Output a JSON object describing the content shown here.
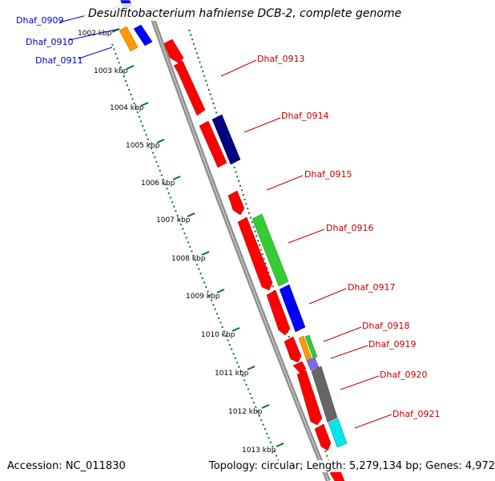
{
  "title": "Desulfitobacterium hafniense DCB-2, complete genome",
  "footer": {
    "accession": "Accession: NC_011830",
    "topology": "Topology: circular; Length: 5,279,134 bp; Genes: 4,972"
  },
  "colors": {
    "backbone": "#808080",
    "ticks": "#00761f",
    "label_blue": "#0000c0",
    "label_red": "#c00000"
  },
  "kbp_ticks": [
    "1002 kbp",
    "1003 kbp",
    "1004 kbp",
    "1005 kbp",
    "1006 kbp",
    "1007 kbp",
    "1008 kbp",
    "1009 kbp",
    "1010 kbp",
    "1011 kbp",
    "1012 kbp",
    "1013 kbp"
  ],
  "genes": [
    {
      "name": "Dhaf_0909",
      "strand": "+",
      "color": "#0000ff",
      "label_color": "#0000c0"
    },
    {
      "name": "Dhaf_0910",
      "strand": "+",
      "color": "#ff9900",
      "label_color": "#0000c0"
    },
    {
      "name": "Dhaf_0911",
      "strand": "+",
      "color": "#0000ff",
      "label_color": "#0000c0"
    },
    {
      "name": "Dhaf_0913",
      "strand": "-",
      "color": "#ff0000",
      "label_color": "#c00000"
    },
    {
      "name": "Dhaf_0914",
      "strand": "+",
      "color": "#000080",
      "label_color": "#c00000"
    },
    {
      "name": "Dhaf_0915",
      "strand": "-",
      "color": "#ff0000",
      "label_color": "#c00000"
    },
    {
      "name": "Dhaf_0916",
      "strand": "+",
      "color": "#33cc33",
      "label_color": "#c00000"
    },
    {
      "name": "Dhaf_0917",
      "strand": "+",
      "color": "#0000ff",
      "label_color": "#c00000"
    },
    {
      "name": "Dhaf_0918",
      "strand": "+",
      "color": "#33cc33",
      "label_color": "#c00000"
    },
    {
      "name": "Dhaf_0919",
      "strand": "+",
      "color": "#ff9900",
      "label_color": "#c00000"
    },
    {
      "name": "Dhaf_0920",
      "strand": "+",
      "color": "#666666",
      "label_color": "#c00000"
    },
    {
      "name": "Dhaf_0921",
      "strand": "+",
      "color": "#00e5ee",
      "label_color": "#c00000"
    }
  ]
}
